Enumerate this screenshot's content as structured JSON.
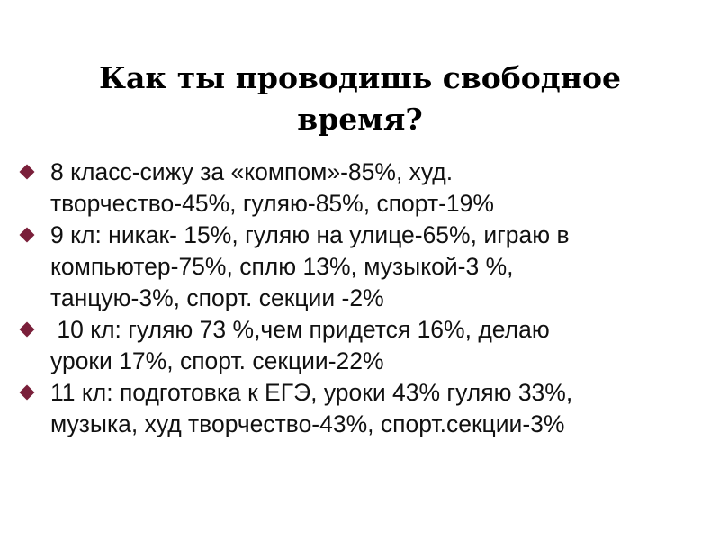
{
  "slide": {
    "title_line1": "Как ты проводишь свободное",
    "title_line2": "время?",
    "bullet_color": "#7a1f3a",
    "bullet_icon": "diamond-bullet-icon",
    "items": [
      {
        "line1": "8 класс-сижу за «компом»-85%, худ.",
        "line2": "творчество-45%, гуляю-85%, спорт-19%"
      },
      {
        "line1": "9 кл: никак- 15%, гуляю на улице-65%, играю в",
        "line2": "компьютер-75%, сплю 13%, музыкой-3 %,",
        "line3": "танцую-3%, спорт. секции -2%"
      },
      {
        "line1": " 10 кл: гуляю 73 %,чем придется 16%, делаю",
        "line2": "уроки 17%, спорт. секции-22%"
      },
      {
        "line1": "11 кл: подготовка к ЕГЭ, уроки 43% гуляю 33%,",
        "line2": "музыка, худ творчество-43%, спорт.секции-3%"
      }
    ]
  }
}
